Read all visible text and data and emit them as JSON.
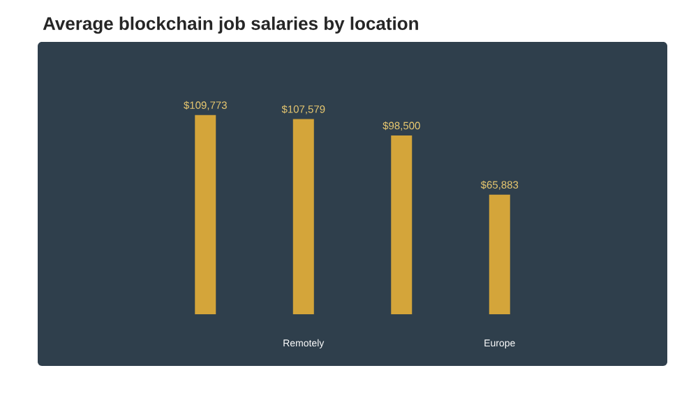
{
  "chart_data": {
    "type": "bar",
    "title": "Average blockchain job salaries by location",
    "categories": [
      null,
      "Remotely",
      null,
      "Europe"
    ],
    "values": [
      109773,
      107579,
      98500,
      65883
    ],
    "value_labels": [
      "$109,773",
      "$107,579",
      "$98,500",
      "$65,883"
    ],
    "color": "#d4a53a"
  }
}
